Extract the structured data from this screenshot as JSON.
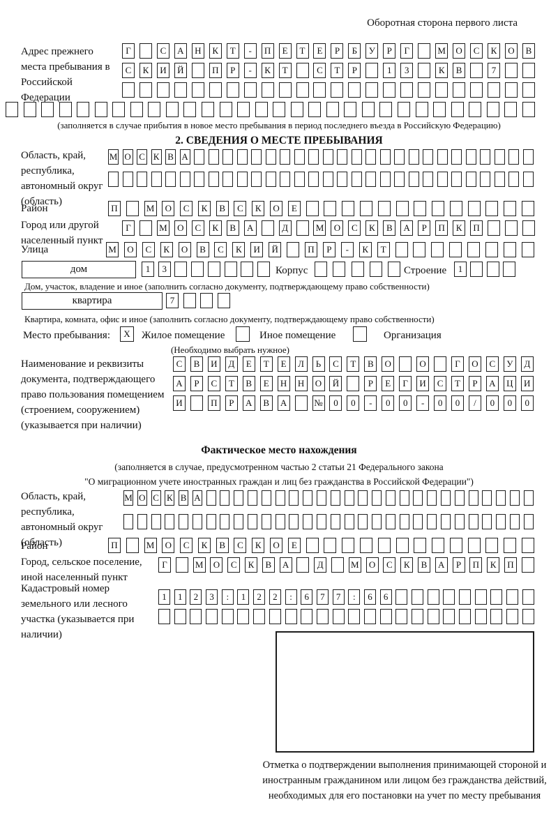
{
  "header": {
    "note": "Оборотная сторона первого листа"
  },
  "ink_color": "#1c1c1c",
  "prev_address": {
    "label": "Адрес прежнего места пребывания в Российской Федерации",
    "rows": [
      {
        "len": 24,
        "text": "Г САНКТ-ПЕТЕРБУРГ МОСКОВ"
      },
      {
        "len": 24,
        "text": "СКИЙ ПР-КТ СТР 13 КВ 7"
      },
      {
        "len": 24,
        "text": ""
      },
      {
        "len": 30,
        "text": ""
      }
    ],
    "note": "(заполняется в случае прибытия в новое место пребывания в период последнего въезда в Российскую Федерацию)"
  },
  "section2": {
    "title": "2. СВЕДЕНИЯ О МЕСТЕ ПРЕБЫВАНИЯ",
    "oblast": {
      "label": "Область, край, республика, автономный округ (область)",
      "rows": [
        {
          "len": 30,
          "text": "МОСКВА"
        },
        {
          "len": 30,
          "text": ""
        }
      ]
    },
    "raion": {
      "label": "Район",
      "row": {
        "len": 24,
        "text": "П МОСКВСКОЕ"
      }
    },
    "gorod": {
      "label": "Город или другой населенный пункт",
      "row": {
        "len": 24,
        "text": "Г МОСКВА Д МОСКВАРПКП"
      }
    },
    "ulitsa": {
      "label": "Улица",
      "row": {
        "len": 24,
        "text": "МОСКОВСКИЙ ПР-КТ"
      }
    },
    "dom": {
      "box_label": "дом",
      "cells": {
        "len": 8,
        "text": "13"
      },
      "korpus_label": "Корпус",
      "korpus_cells": {
        "len": 5,
        "text": ""
      },
      "stroenie_label": "Строение",
      "stroenie_cells": {
        "len": 4,
        "text": "1"
      },
      "note": "Дом, участок, владение и иное (заполнить согласно документу, подтверждающему право собственности)"
    },
    "kvartira": {
      "box_label": "квартира",
      "cells": {
        "len": 4,
        "text": "7"
      },
      "note": "Квартира, комната, офис и иное (заполнить согласно документу, подтверждающему право собственности)"
    },
    "mesto": {
      "label": "Место пребывания:",
      "options": [
        {
          "label": "Жилое помещение",
          "mark": "X"
        },
        {
          "label": "Иное помещение",
          "mark": ""
        },
        {
          "label": "Организация",
          "mark": ""
        }
      ],
      "note": "(Необходимо выбрать нужное)"
    },
    "doc": {
      "label": "Наименование и реквизиты документа, подтверждающего право пользования помещением (строением, сооружением) (указывается при наличии)",
      "rows": [
        {
          "len": 21,
          "text": "СВИДЕТЕЛЬСТВО О ГОСУД"
        },
        {
          "len": 21,
          "text": "АРСТВЕННОЙ РЕГИСТРАЦИ"
        },
        {
          "len": 21,
          "text": "И ПРАВА №00-00-00/000"
        }
      ]
    }
  },
  "section3": {
    "title": "Фактическое место нахождения",
    "note1": "(заполняется в случае, предусмотренном частью 2 статьи 21 Федерального закона",
    "note2": "\"О миграционном учете иностранных граждан и лиц без гражданства в Российской Федерации\")",
    "oblast": {
      "label": "Область, край, республика, автономный округ (область)",
      "rows": [
        {
          "len": 30,
          "text": "МОСКВА"
        },
        {
          "len": 30,
          "text": ""
        }
      ]
    },
    "raion": {
      "label": "Район",
      "row": {
        "len": 24,
        "text": "П МОСКВСКОЕ"
      }
    },
    "gorod": {
      "label": "Город, сельское поселение, иной населенный пункт",
      "row": {
        "len": 22,
        "text": "Г МОСКВА Д МОСКВАРПКП"
      }
    },
    "kadastr": {
      "label": "Кадастровый номер земельного или лесного участка (указывается при наличии)",
      "rows": [
        {
          "len": 24,
          "text": "1123:122:677:66"
        },
        {
          "len": 24,
          "text": ""
        }
      ]
    },
    "stamp_caption": "Отметка о подтверждении выполнения принимающей стороной и иностранным гражданином или лицом без гражданства действий, необходимых для его постановки на учет по месту пребывания"
  }
}
